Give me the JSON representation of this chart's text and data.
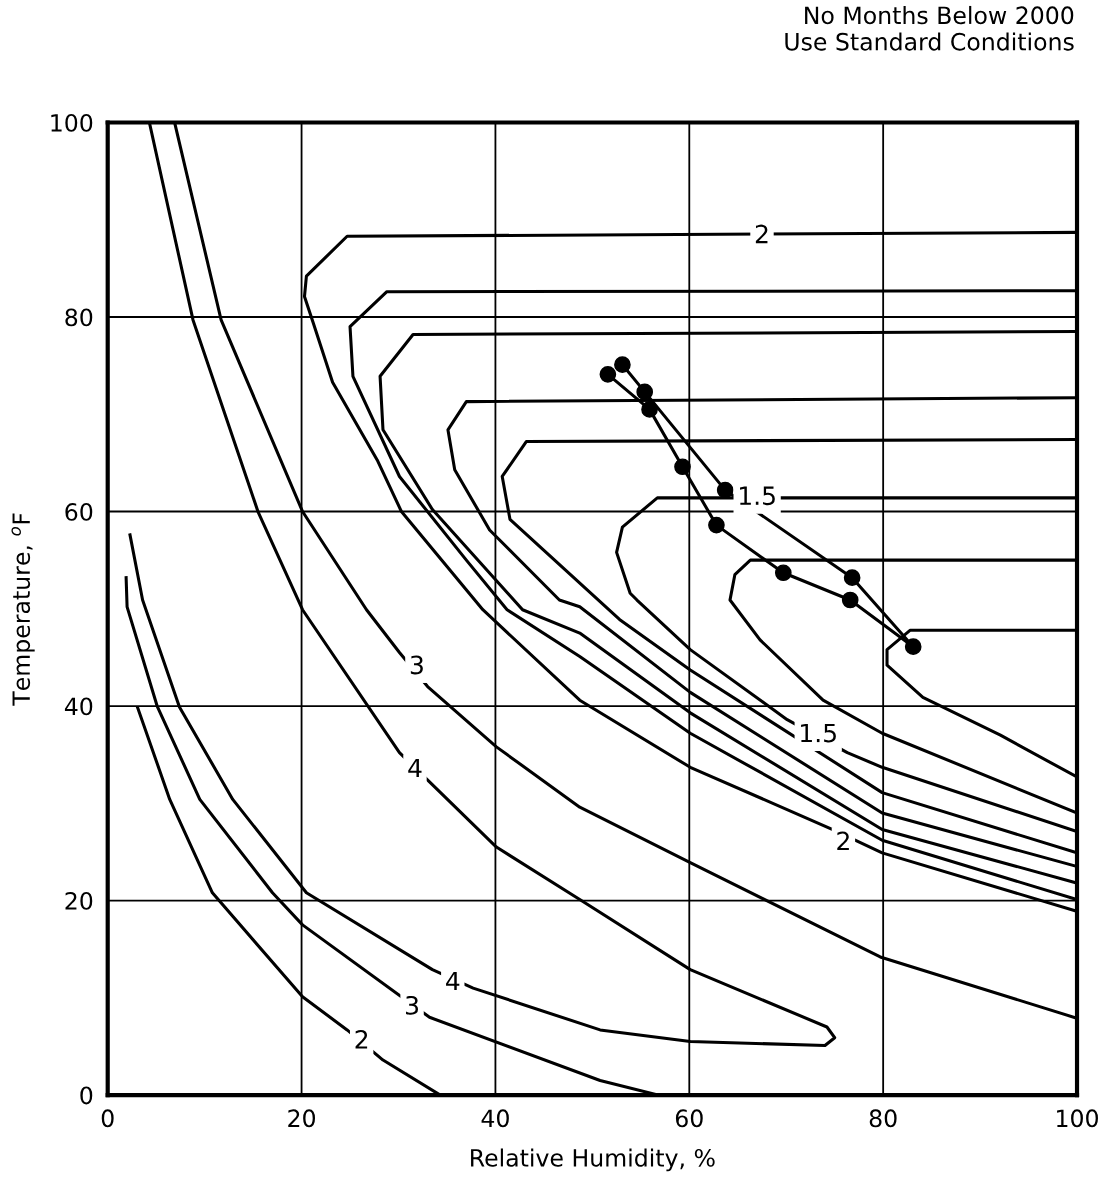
{
  "chart_data": {
    "type": "line",
    "title": "No Months Below 2000\nUse Standard Conditions",
    "xlabel": "Relative Humidity, %",
    "ylabel": "Temperature, $^{o}$F",
    "xlim": [
      0,
      100
    ],
    "ylim": [
      0,
      100
    ],
    "xticks": [
      0,
      20,
      40,
      60,
      80,
      100
    ],
    "yticks": [
      0,
      20,
      40,
      60,
      80,
      100
    ],
    "grid": true,
    "marker": "none",
    "line_style": "solid",
    "series": [
      {
        "color": "#000000",
        "x": [
          2.3,
          3.6,
          7.4,
          12.9,
          20.5,
          33.5,
          37.7,
          50.8,
          60.1,
          74.0,
          75.0,
          74.2,
          60.1,
          48.7,
          40.1,
          33.2,
          30.1,
          20.1,
          15.5,
          8.8,
          4.3
        ],
        "values": [
          57.6,
          50.9,
          39.9,
          30.4,
          20.8,
          12.9,
          11.0,
          6.7,
          5.5,
          5.1,
          5.9,
          7.0,
          12.9,
          20.1,
          25.5,
          32.2,
          35.2,
          49.9,
          60.0,
          79.7,
          100
        ]
      },
      {
        "color": "#000000",
        "x": [
          1.9,
          2.0,
          5.1,
          9.5,
          17.0,
          20.1,
          33.2,
          50.8,
          56.8
        ],
        "values": [
          53.2,
          50.2,
          40.0,
          30.4,
          20.8,
          17.5,
          8.0,
          1.5,
          0
        ]
      },
      {
        "color": "#000000",
        "x": [
          6.9,
          11.7,
          20.1,
          26.7,
          30.1,
          33.0,
          40.1,
          48.7,
          60.1,
          79.7,
          100
        ],
        "values": [
          100,
          79.7,
          60.0,
          49.9,
          45.5,
          42.0,
          35.8,
          29.6,
          23.9,
          14.2,
          7.9
        ]
      },
      {
        "color": "#000000",
        "x": [
          3.1,
          6.4,
          10.8,
          20.1,
          24.7,
          28.4,
          34.3
        ],
        "values": [
          39.8,
          30.4,
          20.8,
          10.1,
          6.7,
          3.6,
          0
        ]
      },
      {
        "color": "#000000",
        "x": [
          100,
          24.7,
          20.5,
          20.3,
          21.2,
          23.2,
          27.8,
          30.3,
          38.7,
          48.7,
          60.1,
          74.8,
          79.9,
          100
        ],
        "values": [
          88.7,
          88.3,
          84.2,
          82.1,
          79.4,
          73.3,
          65.3,
          60.0,
          49.9,
          40.6,
          33.7,
          27.3,
          24.9,
          18.9
        ]
      },
      {
        "color": "#000000",
        "x": [
          100,
          56.7,
          53.1,
          52.5,
          53.9,
          54.6,
          60.1,
          70.1,
          76.3,
          79.9,
          100
        ],
        "values": [
          61.4,
          61.4,
          58.4,
          55.8,
          51.6,
          50.9,
          45.8,
          38.6,
          35.2,
          33.7,
          27.1
        ]
      },
      {
        "color": "#000000",
        "x": [
          100,
          28.8,
          25.0,
          25.3,
          30.1,
          37.0,
          41.2,
          48.7,
          60.1,
          79.9,
          100
        ],
        "values": [
          82.7,
          82.6,
          79.0,
          73.9,
          63.6,
          55.0,
          49.9,
          45.1,
          37.2,
          26.2,
          20.1
        ]
      },
      {
        "color": "#000000",
        "x": [
          100,
          31.5,
          28.1,
          28.4,
          33.5,
          42.8,
          48.7,
          60.1,
          79.9,
          100
        ],
        "values": [
          78.5,
          78.2,
          73.9,
          68.4,
          60.2,
          49.9,
          47.5,
          39.3,
          27.3,
          21.8
        ]
      },
      {
        "color": "#000000",
        "x": [
          100,
          37.0,
          35.1,
          35.8,
          39.4,
          46.6,
          48.7,
          60.1,
          79.9,
          100
        ],
        "values": [
          71.7,
          71.3,
          68.4,
          64.3,
          58.1,
          50.9,
          50.2,
          41.4,
          29.0,
          23.5
        ]
      },
      {
        "color": "#000000",
        "x": [
          100,
          43.2,
          40.7,
          41.5,
          52.8,
          60.1,
          79.9,
          100
        ],
        "values": [
          67.4,
          67.2,
          63.6,
          59.2,
          48.9,
          43.7,
          31.1,
          24.9
        ]
      },
      {
        "color": "#000000",
        "x": [
          100,
          66.3,
          64.7,
          64.2,
          67.3,
          73.8,
          79.9,
          100
        ],
        "values": [
          55.0,
          55.0,
          53.5,
          50.9,
          46.8,
          40.6,
          37.2,
          29.0
        ]
      },
      {
        "color": "#000000",
        "x": [
          100,
          82.8,
          80.4,
          80.4,
          84.1,
          92.1,
          100
        ],
        "values": [
          47.8,
          47.8,
          45.8,
          44.2,
          40.9,
          37.0,
          32.7
        ]
      },
      {
        "color": "#000000",
        "marker": "circle",
        "x": [
          51.6,
          55.9,
          59.3,
          62.8,
          69.7,
          76.6,
          83.1,
          76.8,
          63.7,
          55.4,
          53.1
        ],
        "values": [
          74.1,
          70.5,
          64.6,
          58.6,
          53.7,
          50.9,
          46.1,
          53.2,
          62.2,
          72.3,
          75.1
        ]
      }
    ],
    "annotations": [
      {
        "text": "2",
        "x": 67.5,
        "y": 88.3
      },
      {
        "text": "1.5",
        "x": 67.0,
        "y": 61.4
      },
      {
        "text": "1.5",
        "x": 73.3,
        "y": 37.0
      },
      {
        "text": "2",
        "x": 75.9,
        "y": 25.9
      },
      {
        "text": "3",
        "x": 31.9,
        "y": 44.0
      },
      {
        "text": "4",
        "x": 31.7,
        "y": 33.4
      },
      {
        "text": "4",
        "x": 35.6,
        "y": 11.5
      },
      {
        "text": "3",
        "x": 31.4,
        "y": 9.0
      },
      {
        "text": "2",
        "x": 26.2,
        "y": 5.5
      }
    ]
  }
}
